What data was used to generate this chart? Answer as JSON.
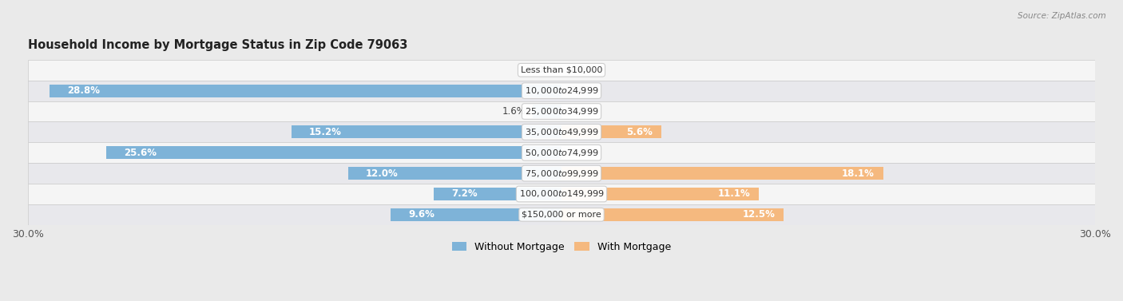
{
  "title": "Household Income by Mortgage Status in Zip Code 79063",
  "source": "Source: ZipAtlas.com",
  "categories": [
    "Less than $10,000",
    "$10,000 to $24,999",
    "$25,000 to $34,999",
    "$35,000 to $49,999",
    "$50,000 to $74,999",
    "$75,000 to $99,999",
    "$100,000 to $149,999",
    "$150,000 or more"
  ],
  "without_mortgage": [
    0.0,
    28.8,
    1.6,
    15.2,
    25.6,
    12.0,
    7.2,
    9.6
  ],
  "with_mortgage": [
    0.0,
    0.0,
    0.0,
    5.6,
    0.0,
    18.1,
    11.1,
    12.5
  ],
  "without_color": "#7EB3D8",
  "with_color": "#F5B97F",
  "bg_color": "#EAEAEA",
  "row_bg_colors": [
    "#F5F5F5",
    "#E8E8EC"
  ],
  "row_border_color": "#CCCCCC",
  "xlim": 30.0,
  "bar_height": 0.62,
  "legend_labels": [
    "Without Mortgage",
    "With Mortgage"
  ],
  "label_fontsize": 8.5,
  "cat_fontsize": 8.0,
  "title_fontsize": 10.5
}
